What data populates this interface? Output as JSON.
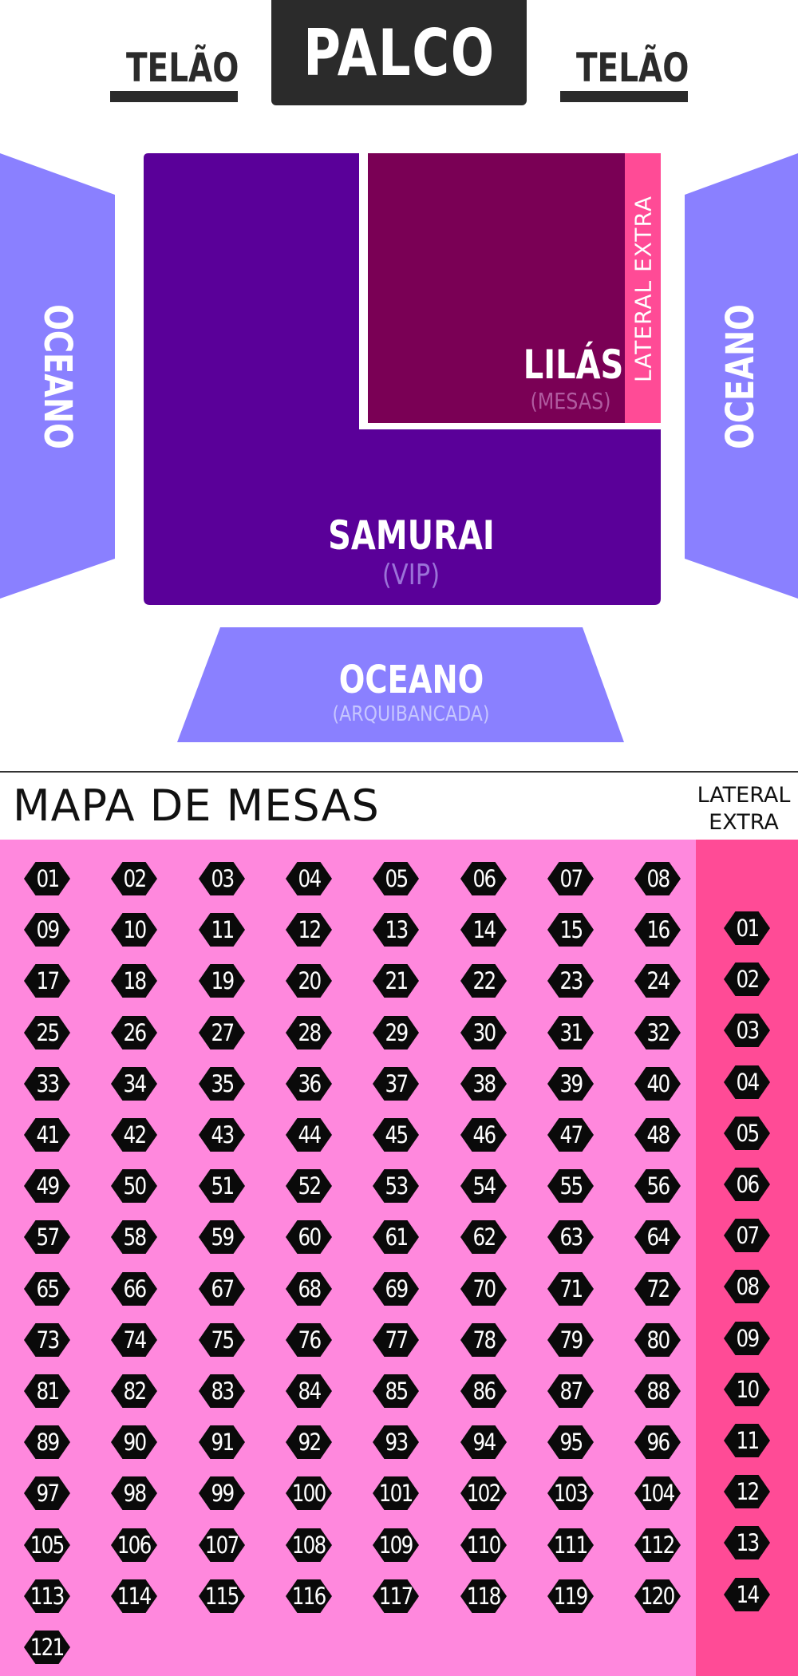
{
  "stage": {
    "label": "PALCO"
  },
  "screens": {
    "left": "TELÃO",
    "right": "TELÃO"
  },
  "zones": {
    "samurai": {
      "name": "SAMURAI",
      "sub": "(VIP)"
    },
    "lilas": {
      "name": "LILÁS",
      "sub": "(MESAS)"
    },
    "lateral_extra": {
      "name": "LATERAL EXTRA"
    },
    "oceano_left": {
      "name": "OCEANO"
    },
    "oceano_right": {
      "name": "OCEANO"
    },
    "oceano_bottom": {
      "name": "OCEANO",
      "sub": "(ARQUIBANCADA)"
    }
  },
  "colors": {
    "samurai": "#5a0099",
    "lilas": "#7a0055",
    "lateral_extra": "#ff4b96",
    "oceano": "#8a80ff",
    "stage": "#2b2b2b",
    "tables_bg": "#ff88dd",
    "lateral_bg": "#ff4b96"
  },
  "table_map": {
    "title": "MAPA DE MESAS",
    "lateral_header": [
      "LATERAL",
      "EXTRA"
    ],
    "tables": [
      "01",
      "02",
      "03",
      "04",
      "05",
      "06",
      "07",
      "08",
      "09",
      "10",
      "11",
      "12",
      "13",
      "14",
      "15",
      "16",
      "17",
      "18",
      "19",
      "20",
      "21",
      "22",
      "23",
      "24",
      "25",
      "26",
      "27",
      "28",
      "29",
      "30",
      "31",
      "32",
      "33",
      "34",
      "35",
      "36",
      "37",
      "38",
      "39",
      "40",
      "41",
      "42",
      "43",
      "44",
      "45",
      "46",
      "47",
      "48",
      "49",
      "50",
      "51",
      "52",
      "53",
      "54",
      "55",
      "56",
      "57",
      "58",
      "59",
      "60",
      "61",
      "62",
      "63",
      "64",
      "65",
      "66",
      "67",
      "68",
      "69",
      "70",
      "71",
      "72",
      "73",
      "74",
      "75",
      "76",
      "77",
      "78",
      "79",
      "80",
      "81",
      "82",
      "83",
      "84",
      "85",
      "86",
      "87",
      "88",
      "89",
      "90",
      "91",
      "92",
      "93",
      "94",
      "95",
      "96",
      "97",
      "98",
      "99",
      "100",
      "101",
      "102",
      "103",
      "104",
      "105",
      "106",
      "107",
      "108",
      "109",
      "110",
      "111",
      "112",
      "113",
      "114",
      "115",
      "116",
      "117",
      "118",
      "119",
      "120",
      "121"
    ],
    "lateral_tables": [
      "01",
      "02",
      "03",
      "04",
      "05",
      "06",
      "07",
      "08",
      "09",
      "10",
      "11",
      "12",
      "13",
      "14"
    ]
  }
}
